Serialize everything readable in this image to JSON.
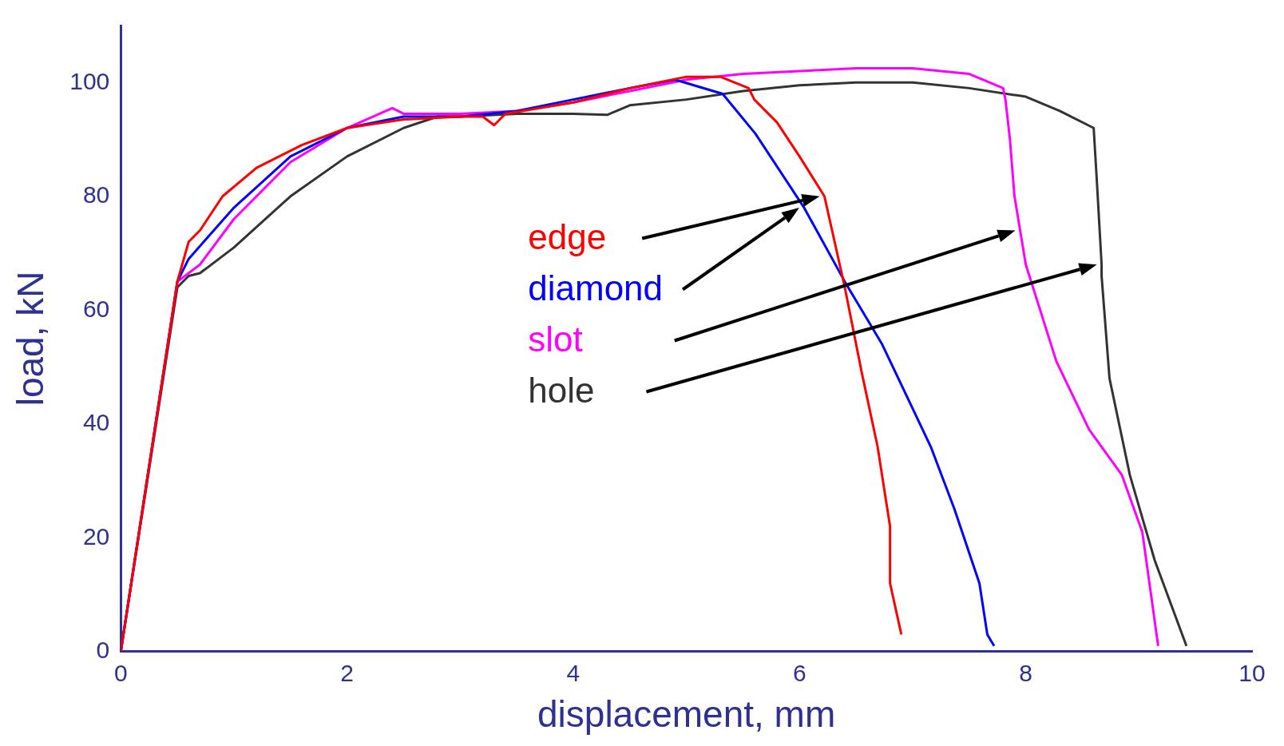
{
  "chart_data": {
    "type": "line",
    "xlabel": "displacement, mm",
    "ylabel": "load, kN",
    "xlim": [
      0,
      10
    ],
    "xticks": [
      0,
      2,
      4,
      6,
      8,
      10
    ],
    "ylim": [
      0,
      110
    ],
    "yticks": [
      0,
      20,
      40,
      60,
      80,
      100
    ],
    "grid": false,
    "legend": "center",
    "marker": "none",
    "line_style": "solid",
    "series": [
      {
        "name": "edge",
        "color": "#ff0000",
        "x": [
          0,
          0.5,
          0.6,
          0.7,
          0.9,
          1.2,
          1.6,
          2,
          2.5,
          3,
          3.2,
          3.3,
          3.4,
          4,
          4.5,
          5,
          5.3,
          5.55,
          5.6,
          5.8,
          6,
          6.22,
          6.4,
          6.55,
          6.69,
          6.8,
          6.8,
          6.9
        ],
        "values": [
          0,
          65,
          72,
          74,
          80,
          85,
          89,
          92,
          93.5,
          94,
          94,
          92.5,
          94.5,
          96.5,
          99,
          101,
          101,
          99,
          97,
          93,
          87,
          80,
          64,
          49,
          36,
          22,
          12,
          3
        ]
      },
      {
        "name": "diamond",
        "color": "#0000ff",
        "x": [
          0,
          0.5,
          0.6,
          1,
          1.5,
          2,
          2.5,
          3,
          3.5,
          4,
          4.5,
          4.9,
          5.32,
          5.61,
          6.04,
          6.4,
          6.73,
          7.16,
          7.37,
          7.59,
          7.66,
          7.72
        ],
        "values": [
          0,
          65,
          69,
          78,
          87,
          92,
          94,
          94,
          95,
          97,
          99,
          100.5,
          98,
          91,
          78,
          65,
          54,
          36,
          25,
          12,
          3,
          1
        ]
      },
      {
        "name": "slot",
        "color": "#ff00ff",
        "x": [
          0,
          0.5,
          0.7,
          1,
          1.5,
          2,
          2.4,
          2.5,
          3,
          3.5,
          4,
          4.5,
          5,
          5.5,
          6,
          6.5,
          7,
          7.5,
          7.8,
          7.82,
          7.86,
          7.9,
          7.95,
          8,
          8.27,
          8.56,
          8.85,
          9.03,
          9.17
        ],
        "values": [
          0,
          65,
          68,
          76,
          86,
          92,
          95.5,
          94.5,
          94.5,
          95,
          96.5,
          98.5,
          100.5,
          101.5,
          102,
          102.5,
          102.5,
          101.5,
          99,
          97,
          90,
          80,
          74,
          68,
          51,
          39,
          31,
          21,
          1
        ]
      },
      {
        "name": "hole",
        "color": "#333333",
        "x": [
          0,
          0.5,
          0.6,
          0.7,
          1,
          1.5,
          2,
          2.5,
          2.8,
          3,
          3.5,
          4,
          4.3,
          4.5,
          5,
          5.5,
          6,
          6.5,
          7,
          7.5,
          8,
          8.3,
          8.6,
          8.63,
          8.67,
          8.67,
          8.74,
          8.92,
          9.14,
          9.42
        ],
        "values": [
          0,
          64,
          66,
          66.5,
          71,
          80,
          87,
          92,
          94,
          94,
          94.5,
          94.5,
          94.3,
          96,
          97,
          98.5,
          99.5,
          100,
          100,
          99,
          97.5,
          95,
          92,
          82,
          68,
          66,
          48,
          31,
          16,
          1
        ]
      }
    ]
  }
}
